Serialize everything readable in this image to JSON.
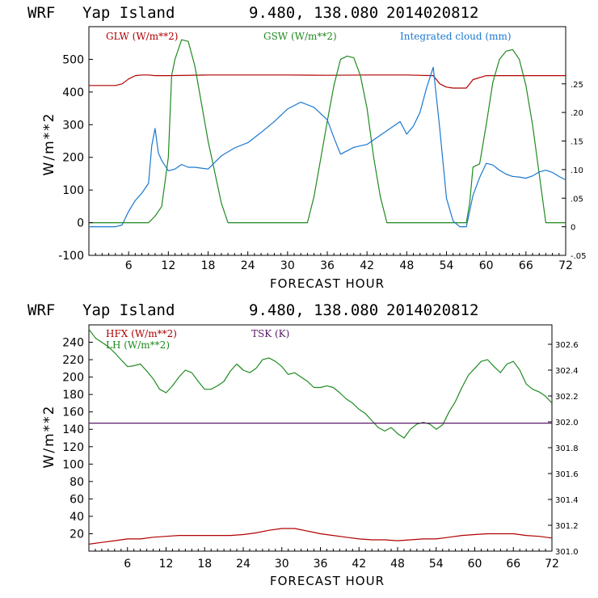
{
  "header": {
    "model": "WRF",
    "location": "Yap Island",
    "coords": "9.480, 138.080",
    "init": "2014020812"
  },
  "colors": {
    "red": "#b00000",
    "green": "#1f8a1f",
    "blue": "#1a78d0",
    "purple": "#5a1a6a",
    "axis": "#000000"
  },
  "chart_data": [
    {
      "type": "line",
      "title": "WRF Yap Island 9.480, 138.080 2014020812",
      "xlabel": "FORECAST HOUR",
      "ylabel": "W/m**2",
      "xlim": [
        0,
        72
      ],
      "ylim": [
        -100,
        600
      ],
      "y2lim": [
        -0.05,
        0.35
      ],
      "x_ticks": [
        6,
        12,
        18,
        24,
        30,
        36,
        42,
        48,
        54,
        60,
        66,
        72
      ],
      "y_ticks": [
        -100,
        0,
        100,
        200,
        300,
        400,
        500
      ],
      "y_tick_labels": [
        "-100",
        "0",
        "100",
        "200",
        "300",
        "400",
        "500"
      ],
      "y2_ticks": [
        -0.05,
        0,
        0.05,
        0.1,
        0.15,
        0.2,
        0.25
      ],
      "y2_tick_labels": [
        "-.05",
        "0",
        ".05",
        ".10",
        ".15",
        ".20",
        ".25"
      ],
      "series": [
        {
          "name": "GLW (W/m**2)",
          "color_key": "red",
          "axis": "left",
          "x": [
            0,
            4,
            5,
            6,
            7,
            8,
            9,
            10,
            12,
            18,
            24,
            30,
            36,
            42,
            48,
            52,
            53,
            54,
            55,
            57,
            58,
            60,
            66,
            72
          ],
          "y": [
            420,
            420,
            425,
            440,
            450,
            452,
            452,
            450,
            450,
            452,
            452,
            452,
            451,
            452,
            452,
            450,
            425,
            415,
            412,
            412,
            438,
            450,
            450,
            450
          ]
        },
        {
          "name": "GSW (W/m**2)",
          "color_key": "green",
          "axis": "left",
          "x": [
            0,
            9,
            10,
            11,
            12,
            12.5,
            13,
            14,
            15,
            16,
            18,
            20,
            21,
            22,
            32,
            33,
            34,
            36,
            37,
            38,
            39,
            40,
            41,
            42,
            43,
            44,
            45,
            46,
            56,
            57,
            57.5,
            58,
            59,
            60,
            61,
            62,
            63,
            64,
            65,
            66,
            67,
            68,
            69,
            72
          ],
          "y": [
            0,
            0,
            20,
            50,
            200,
            450,
            500,
            560,
            555,
            480,
            250,
            60,
            0,
            0,
            0,
            0,
            80,
            310,
            420,
            500,
            510,
            505,
            450,
            350,
            200,
            80,
            0,
            0,
            0,
            0,
            60,
            170,
            180,
            300,
            430,
            500,
            525,
            530,
            500,
            420,
            300,
            150,
            0,
            0
          ],
          "peak_values": [
            560,
            512,
            528
          ]
        },
        {
          "name": "Integrated cloud (mm)",
          "color_key": "blue",
          "axis": "right",
          "x": [
            0,
            4,
            5,
            6,
            7,
            8,
            9,
            9.5,
            10,
            10.5,
            11,
            12,
            13,
            14,
            15,
            16,
            18,
            20,
            22,
            24,
            26,
            28,
            30,
            32,
            34,
            36,
            37,
            38,
            40,
            42,
            44,
            46,
            47,
            48,
            49,
            50,
            51,
            52,
            53,
            54,
            55,
            56,
            57,
            58,
            59,
            60,
            61,
            62,
            63,
            64,
            65,
            66,
            67,
            68,
            69,
            70,
            71,
            72
          ],
          "y": [
            0,
            0,
            0.003,
            0.027,
            0.046,
            0.059,
            0.076,
            0.142,
            0.172,
            0.129,
            0.116,
            0.098,
            0.101,
            0.109,
            0.104,
            0.104,
            0.101,
            0.124,
            0.138,
            0.147,
            0.165,
            0.184,
            0.206,
            0.218,
            0.209,
            0.187,
            0.156,
            0.127,
            0.139,
            0.144,
            0.16,
            0.176,
            0.184,
            0.162,
            0.176,
            0.2,
            0.243,
            0.279,
            0.17,
            0.05,
            0.01,
            0.0,
            0.0,
            0.055,
            0.086,
            0.111,
            0.108,
            0.099,
            0.092,
            0.088,
            0.087,
            0.085,
            0.089,
            0.096,
            0.099,
            0.095,
            0.088,
            0.082
          ]
        }
      ]
    },
    {
      "type": "line",
      "title": "WRF Yap Island 9.480, 138.080 2014020812",
      "xlabel": "FORECAST HOUR",
      "ylabel": "W/m**2",
      "xlim": [
        0,
        72
      ],
      "ylim": [
        0,
        260
      ],
      "y2lim": [
        301.0,
        302.75
      ],
      "x_ticks": [
        6,
        12,
        18,
        24,
        30,
        36,
        42,
        48,
        54,
        60,
        66,
        72
      ],
      "y_ticks": [
        20,
        40,
        60,
        80,
        100,
        120,
        140,
        160,
        180,
        200,
        220,
        240
      ],
      "y_tick_labels": [
        "20",
        "40",
        "60",
        "80",
        "100",
        "120",
        "140",
        "160",
        "180",
        "200",
        "220",
        "240"
      ],
      "y2_ticks": [
        301.0,
        301.2,
        301.4,
        301.6,
        301.8,
        302.0,
        302.2,
        302.4,
        302.6
      ],
      "y2_tick_labels": [
        "301.0",
        "301.2",
        "301.4",
        "301.6",
        "301.8",
        "302.0",
        "302.2",
        "302.4",
        "302.6"
      ],
      "series": [
        {
          "name": "HFX (W/m**2)",
          "color_key": "red",
          "axis": "left",
          "x": [
            0,
            2,
            4,
            6,
            8,
            10,
            12,
            14,
            16,
            18,
            20,
            22,
            24,
            26,
            28,
            30,
            32,
            34,
            36,
            38,
            40,
            42,
            44,
            46,
            48,
            50,
            52,
            54,
            56,
            58,
            60,
            62,
            64,
            66,
            68,
            70,
            72
          ],
          "y": [
            8,
            10,
            12,
            14,
            14,
            16,
            17,
            18,
            18,
            18,
            18,
            18,
            19,
            21,
            24,
            26,
            26,
            23,
            20,
            18,
            16,
            14,
            13,
            13,
            12,
            13,
            14,
            14,
            16,
            18,
            19,
            20,
            20,
            20,
            18,
            17,
            15
          ]
        },
        {
          "name": "LH (W/m**2)",
          "color_key": "green",
          "axis": "left",
          "x": [
            0,
            1,
            2,
            3,
            4,
            5,
            6,
            7,
            8,
            9,
            10,
            11,
            12,
            13,
            14,
            15,
            16,
            17,
            18,
            19,
            20,
            21,
            22,
            23,
            24,
            25,
            26,
            27,
            28,
            29,
            30,
            31,
            32,
            33,
            34,
            35,
            36,
            37,
            38,
            39,
            40,
            41,
            42,
            43,
            44,
            45,
            46,
            47,
            48,
            49,
            50,
            51,
            52,
            53,
            54,
            55,
            56,
            57,
            58,
            59,
            60,
            61,
            62,
            63,
            64,
            65,
            66,
            67,
            68,
            69,
            70,
            71,
            72
          ],
          "y": [
            255,
            245,
            240,
            235,
            228,
            220,
            212,
            213,
            215,
            207,
            198,
            186,
            182,
            190,
            200,
            208,
            205,
            195,
            186,
            186,
            190,
            195,
            207,
            215,
            208,
            205,
            210,
            220,
            222,
            218,
            212,
            203,
            205,
            200,
            195,
            188,
            188,
            190,
            188,
            182,
            175,
            170,
            163,
            158,
            150,
            142,
            138,
            142,
            135,
            130,
            140,
            146,
            148,
            146,
            140,
            145,
            160,
            172,
            188,
            202,
            210,
            218,
            220,
            212,
            205,
            215,
            218,
            208,
            192,
            186,
            183,
            178,
            170
          ]
        },
        {
          "name": "TSK (K)",
          "color_key": "purple",
          "axis": "right",
          "x": [
            0,
            72
          ],
          "y": [
            301.99,
            301.99
          ]
        }
      ]
    }
  ]
}
